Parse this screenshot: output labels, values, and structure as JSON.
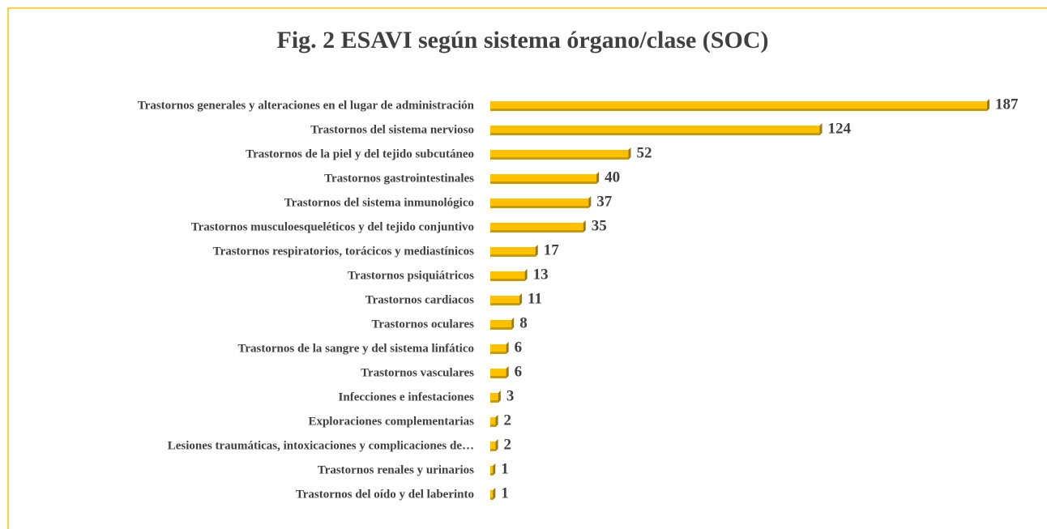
{
  "chart_data": {
    "type": "bar",
    "orientation": "horizontal",
    "title": "Fig. 2 ESAVI según sistema órgano/clase (SOC)",
    "categories": [
      "Trastornos generales y alteraciones en el lugar de administración",
      "Trastornos del sistema nervioso",
      "Trastornos de la piel y del tejido subcutáneo",
      "Trastornos gastrointestinales",
      "Trastornos del sistema inmunológico",
      "Trastornos musculoesqueléticos y del tejido conjuntivo",
      "Trastornos respiratorios, torácicos y mediastínicos",
      "Trastornos psiquiátricos",
      "Trastornos cardiacos",
      "Trastornos oculares",
      "Trastornos de la sangre y del sistema linfático",
      "Trastornos vasculares",
      "Infecciones e infestaciones",
      "Exploraciones complementarias",
      "Lesiones traumáticas, intoxicaciones y complicaciones de…",
      "Trastornos renales y urinarios",
      "Trastornos del oído y del laberinto"
    ],
    "values": [
      187,
      124,
      52,
      40,
      37,
      35,
      17,
      13,
      11,
      8,
      6,
      6,
      3,
      2,
      2,
      1,
      1
    ],
    "color": "#ffc000"
  }
}
